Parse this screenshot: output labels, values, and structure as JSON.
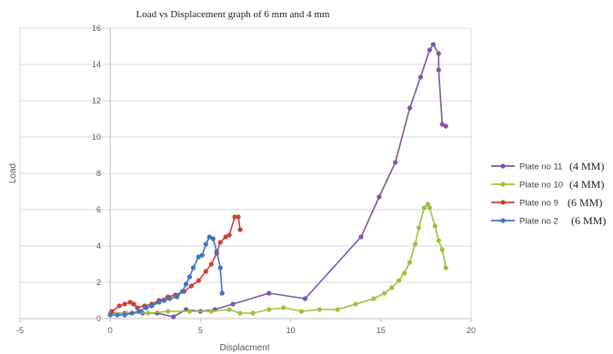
{
  "chart_data": {
    "type": "scatter",
    "title": "Load vs Displacement graph of 6 mm and 4 mm",
    "xlabel": "Displacment",
    "ylabel": "Load",
    "xlim": [
      -5,
      20
    ],
    "ylim": [
      0,
      16
    ],
    "xticks": [
      -5,
      0,
      5,
      10,
      15,
      20
    ],
    "yticks": [
      0,
      2,
      4,
      6,
      8,
      10,
      12,
      14,
      16
    ],
    "grid": "horizontal",
    "legend_position": "right",
    "series": [
      {
        "name": "Plate no 11",
        "note": "(4 MM)",
        "color": "#7e57a6",
        "points": [
          [
            0.1,
            0.3
          ],
          [
            0.8,
            0.3
          ],
          [
            1.8,
            0.3
          ],
          [
            2.6,
            0.3
          ],
          [
            3.5,
            0.1
          ],
          [
            4.2,
            0.5
          ],
          [
            5.0,
            0.4
          ],
          [
            5.8,
            0.5
          ],
          [
            6.8,
            0.8
          ],
          [
            8.8,
            1.4
          ],
          [
            10.8,
            1.1
          ],
          [
            13.9,
            4.5
          ],
          [
            14.9,
            6.7
          ],
          [
            15.8,
            8.6
          ],
          [
            16.6,
            11.6
          ],
          [
            17.2,
            13.3
          ],
          [
            17.7,
            14.8
          ],
          [
            17.9,
            15.1
          ],
          [
            18.2,
            14.6
          ],
          [
            18.2,
            13.7
          ],
          [
            18.4,
            10.7
          ],
          [
            18.6,
            10.6
          ]
        ]
      },
      {
        "name": "Plate no 10",
        "note": "(4 MM)",
        "color": "#9bc33c",
        "points": [
          [
            0.0,
            0.3
          ],
          [
            0.9,
            0.3
          ],
          [
            2.1,
            0.3
          ],
          [
            3.2,
            0.4
          ],
          [
            4.4,
            0.4
          ],
          [
            5.6,
            0.4
          ],
          [
            6.6,
            0.5
          ],
          [
            7.2,
            0.3
          ],
          [
            7.9,
            0.3
          ],
          [
            8.8,
            0.5
          ],
          [
            9.6,
            0.6
          ],
          [
            10.6,
            0.4
          ],
          [
            11.6,
            0.5
          ],
          [
            12.6,
            0.5
          ],
          [
            13.6,
            0.8
          ],
          [
            14.6,
            1.1
          ],
          [
            15.2,
            1.4
          ],
          [
            15.6,
            1.7
          ],
          [
            16.0,
            2.1
          ],
          [
            16.3,
            2.5
          ],
          [
            16.6,
            3.1
          ],
          [
            16.9,
            4.1
          ],
          [
            17.1,
            5.0
          ],
          [
            17.4,
            6.1
          ],
          [
            17.6,
            6.3
          ],
          [
            17.7,
            6.1
          ],
          [
            18.0,
            5.1
          ],
          [
            18.2,
            4.3
          ],
          [
            18.4,
            3.8
          ],
          [
            18.6,
            2.8
          ]
        ]
      },
      {
        "name": "Plate no 9",
        "note": "(6 MM)",
        "color": "#c8423c",
        "points": [
          [
            0.1,
            0.4
          ],
          [
            0.5,
            0.7
          ],
          [
            0.8,
            0.8
          ],
          [
            1.1,
            0.9
          ],
          [
            1.3,
            0.8
          ],
          [
            1.5,
            0.6
          ],
          [
            1.9,
            0.7
          ],
          [
            2.3,
            0.8
          ],
          [
            2.7,
            1.0
          ],
          [
            3.2,
            1.2
          ],
          [
            3.6,
            1.3
          ],
          [
            4.1,
            1.5
          ],
          [
            4.5,
            1.8
          ],
          [
            4.9,
            2.1
          ],
          [
            5.3,
            2.6
          ],
          [
            5.6,
            3.0
          ],
          [
            5.9,
            3.6
          ],
          [
            6.1,
            4.2
          ],
          [
            6.4,
            4.5
          ],
          [
            6.6,
            4.6
          ],
          [
            6.9,
            5.6
          ],
          [
            7.1,
            5.6
          ],
          [
            7.2,
            4.9
          ]
        ]
      },
      {
        "name": "Plate no 2",
        "note": "(6 MM)",
        "color": "#3f74c1",
        "points": [
          [
            0.0,
            0.2
          ],
          [
            0.4,
            0.2
          ],
          [
            0.8,
            0.2
          ],
          [
            1.2,
            0.3
          ],
          [
            1.6,
            0.4
          ],
          [
            2.0,
            0.6
          ],
          [
            2.3,
            0.7
          ],
          [
            2.7,
            0.9
          ],
          [
            3.0,
            1.0
          ],
          [
            3.3,
            1.1
          ],
          [
            3.7,
            1.2
          ],
          [
            4.0,
            1.5
          ],
          [
            4.2,
            1.9
          ],
          [
            4.4,
            2.3
          ],
          [
            4.6,
            2.8
          ],
          [
            4.9,
            3.4
          ],
          [
            5.1,
            3.5
          ],
          [
            5.3,
            4.1
          ],
          [
            5.5,
            4.5
          ],
          [
            5.7,
            4.4
          ],
          [
            5.9,
            3.7
          ],
          [
            6.1,
            2.8
          ],
          [
            6.2,
            1.4
          ]
        ]
      }
    ]
  }
}
